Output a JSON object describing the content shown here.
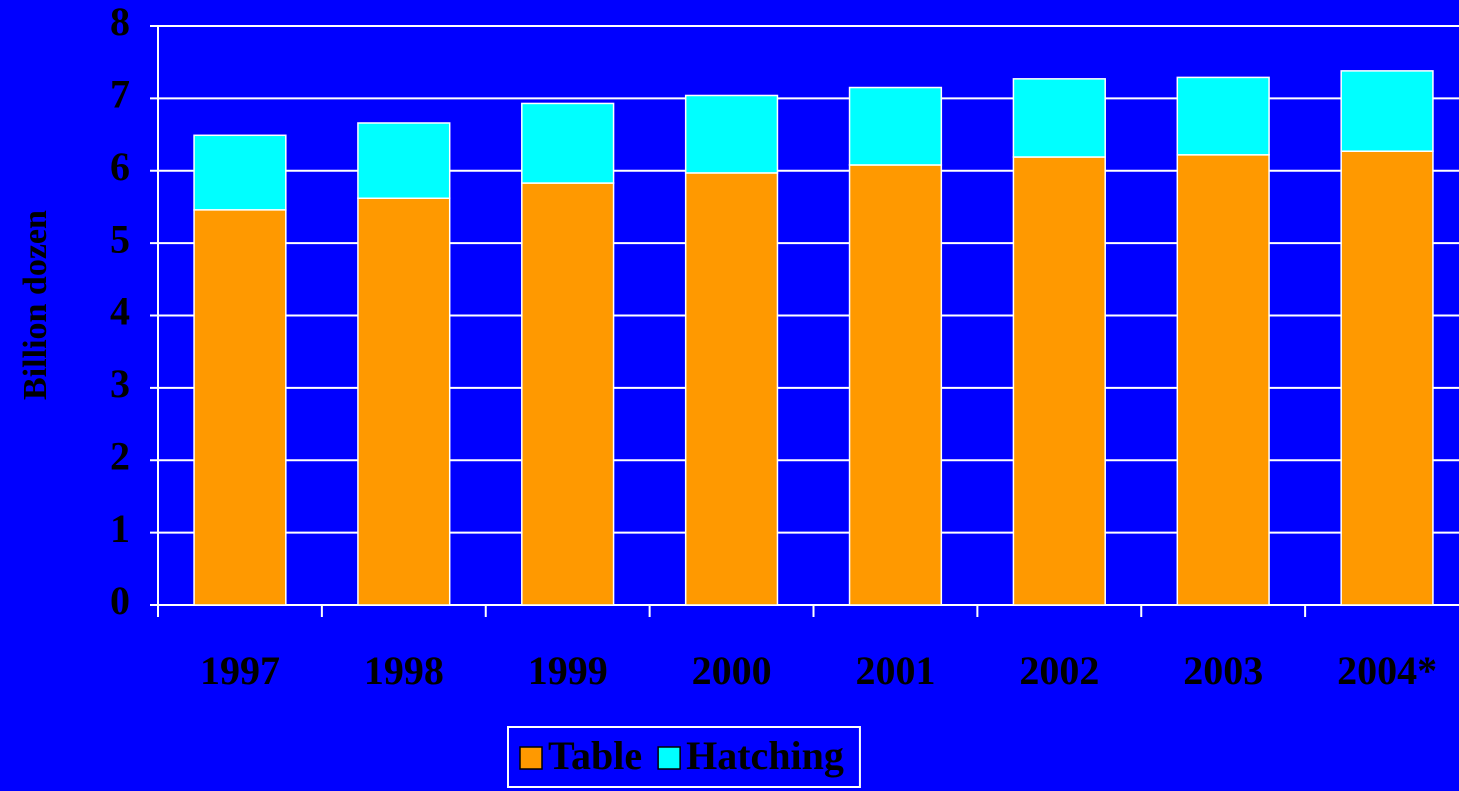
{
  "chart_data": {
    "type": "stacked_bar",
    "y_label": "Billion dozen",
    "categories": [
      "1997",
      "1998",
      "1999",
      "2000",
      "2001",
      "2002",
      "2003",
      "2004*"
    ],
    "series": [
      {
        "name": "Table",
        "color": "#ff9900",
        "values": [
          5.46,
          5.62,
          5.83,
          5.97,
          6.08,
          6.19,
          6.22,
          6.27
        ]
      },
      {
        "name": "Hatching",
        "color": "#00ffff",
        "values": [
          1.03,
          1.04,
          1.1,
          1.07,
          1.07,
          1.08,
          1.07,
          1.11
        ]
      }
    ],
    "ylim": [
      0,
      8
    ],
    "yticks": [
      0,
      1,
      2,
      3,
      4,
      5,
      6,
      7,
      8
    ],
    "grid": true,
    "legend": "bottom"
  }
}
